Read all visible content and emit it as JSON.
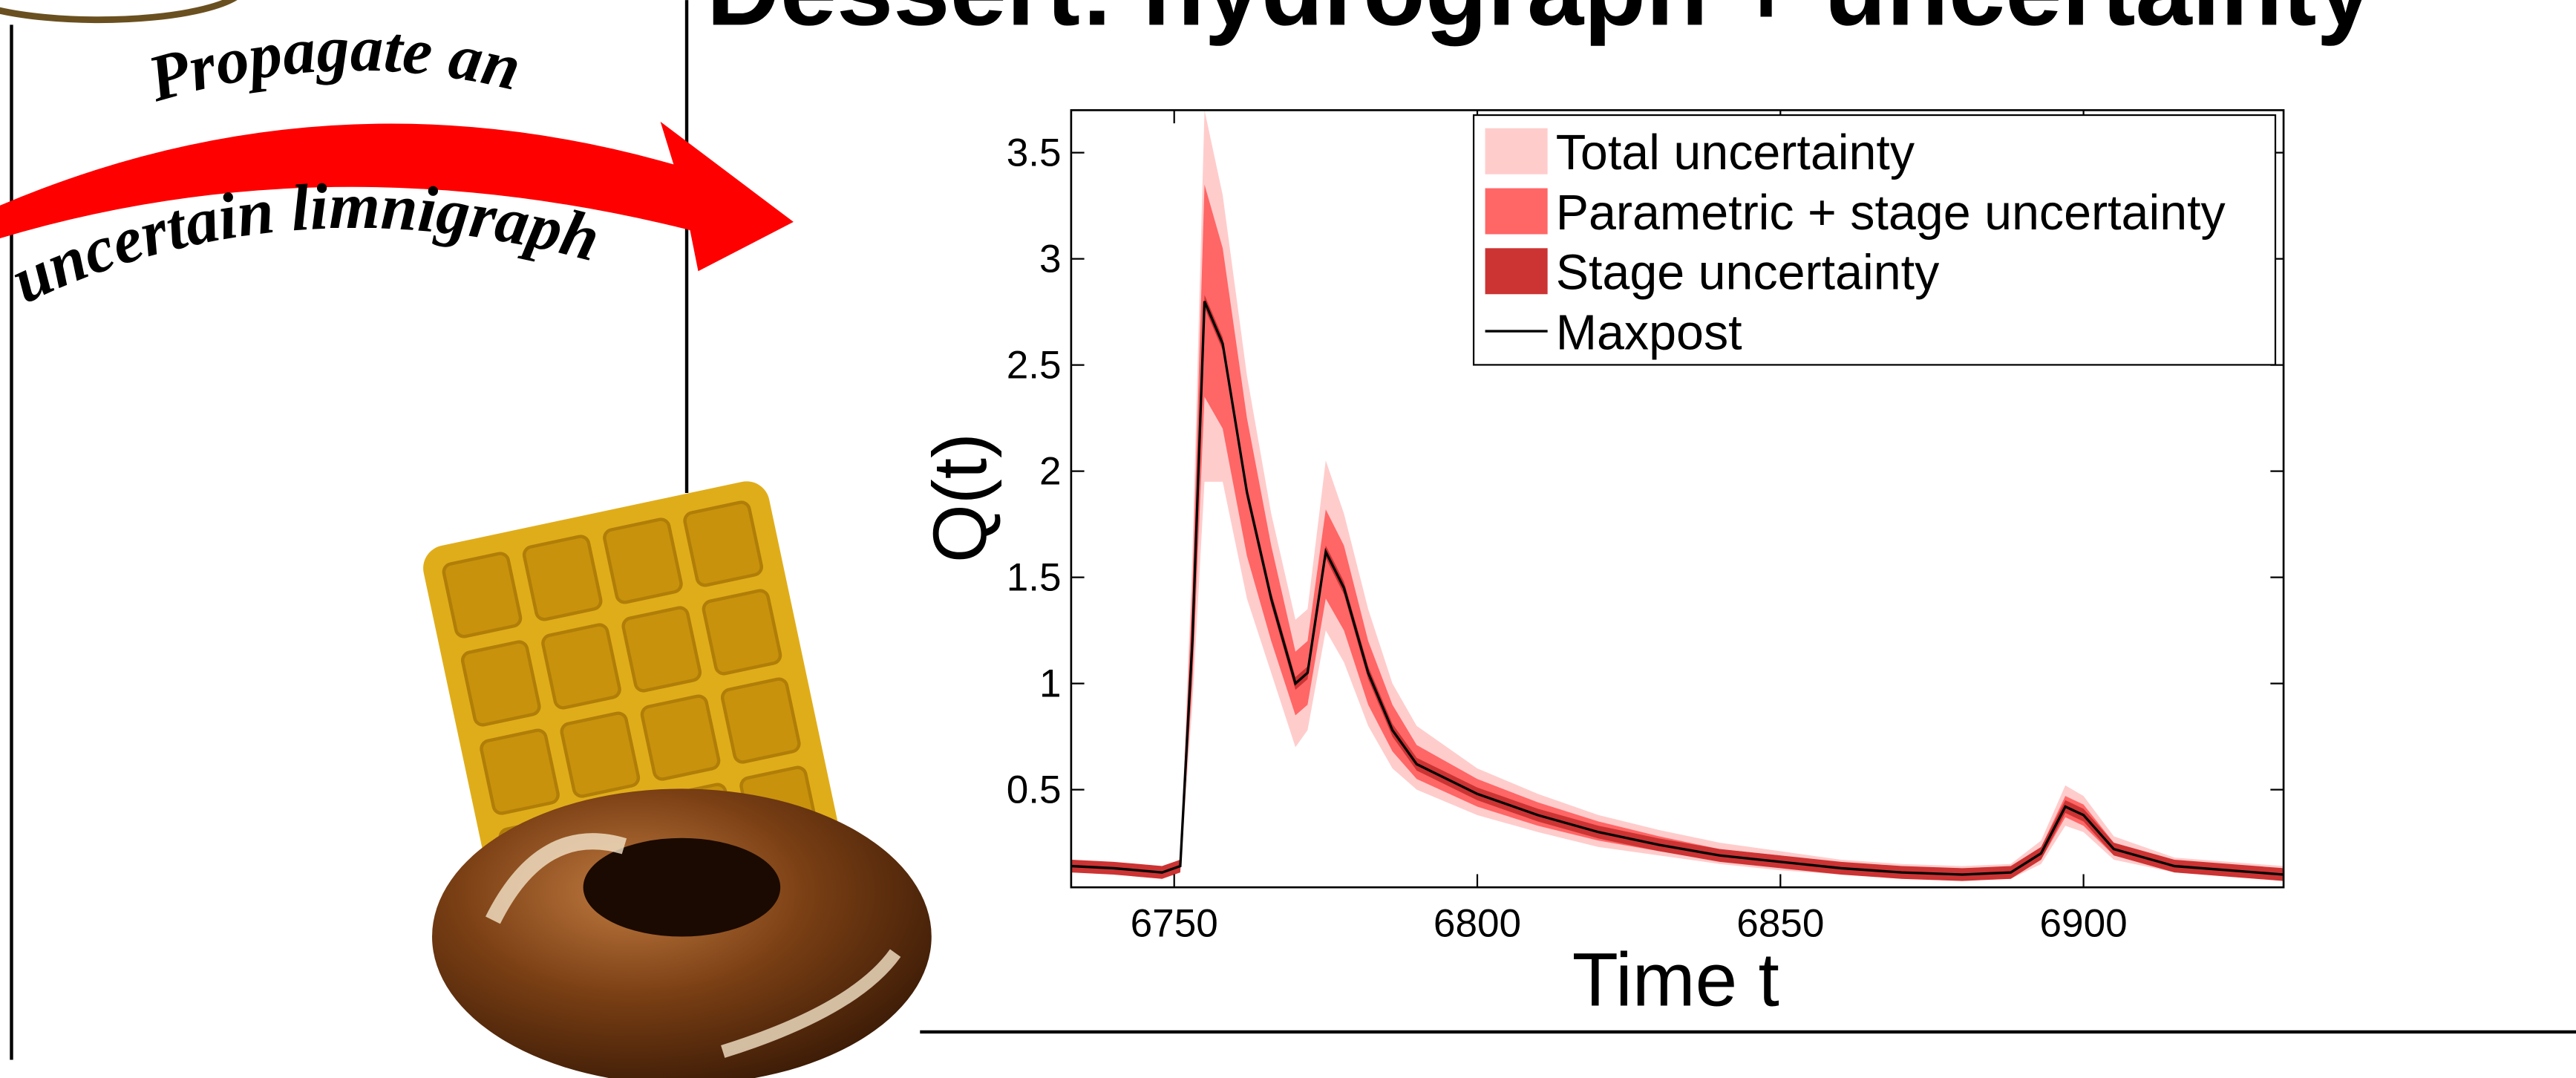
{
  "title": "Dessert: hydrograph + uncertainty",
  "arrow_text": [
    "Propagate an",
    "uncertain limnigraph"
  ],
  "chart_data": {
    "type": "band-line",
    "xlabel": "Time t",
    "ylabel": "Q(t)",
    "xlim": [
      6733,
      6933
    ],
    "ylim": [
      0.04,
      3.7
    ],
    "xticks": [
      6750,
      6800,
      6850,
      6900
    ],
    "yticks": [
      0.5,
      1,
      1.5,
      2,
      2.5,
      3,
      3.5
    ],
    "legend": "upper right",
    "x": [
      6733,
      6740,
      6748,
      6751,
      6753,
      6755,
      6758,
      6762,
      6766,
      6770,
      6772,
      6775,
      6778,
      6782,
      6786,
      6790,
      6800,
      6810,
      6820,
      6830,
      6840,
      6850,
      6860,
      6870,
      6880,
      6888,
      6893,
      6897,
      6900,
      6905,
      6915,
      6933
    ],
    "series": [
      {
        "name": "Total uncertainty",
        "color": "#ffcccc",
        "lower": [
          0.11,
          0.1,
          0.08,
          0.11,
          0.9,
          1.95,
          1.95,
          1.4,
          1.05,
          0.7,
          0.78,
          1.25,
          1.1,
          0.8,
          0.6,
          0.5,
          0.38,
          0.3,
          0.23,
          0.19,
          0.15,
          0.12,
          0.1,
          0.08,
          0.07,
          0.08,
          0.15,
          0.33,
          0.3,
          0.17,
          0.11,
          0.07
        ],
        "upper": [
          0.17,
          0.16,
          0.14,
          0.17,
          1.6,
          3.7,
          3.3,
          2.45,
          1.8,
          1.3,
          1.35,
          2.05,
          1.8,
          1.35,
          1.0,
          0.8,
          0.6,
          0.48,
          0.38,
          0.31,
          0.25,
          0.21,
          0.17,
          0.15,
          0.14,
          0.15,
          0.26,
          0.52,
          0.47,
          0.28,
          0.18,
          0.14
        ]
      },
      {
        "name": "Parametric + stage uncertainty",
        "color": "#ff6666",
        "lower": [
          0.12,
          0.11,
          0.09,
          0.12,
          1.0,
          2.35,
          2.2,
          1.6,
          1.2,
          0.85,
          0.9,
          1.4,
          1.25,
          0.9,
          0.68,
          0.55,
          0.42,
          0.33,
          0.26,
          0.21,
          0.17,
          0.14,
          0.11,
          0.09,
          0.08,
          0.09,
          0.17,
          0.37,
          0.33,
          0.19,
          0.12,
          0.08
        ],
        "upper": [
          0.16,
          0.15,
          0.13,
          0.16,
          1.45,
          3.35,
          3.05,
          2.25,
          1.65,
          1.15,
          1.2,
          1.82,
          1.65,
          1.2,
          0.9,
          0.71,
          0.55,
          0.44,
          0.35,
          0.28,
          0.22,
          0.19,
          0.15,
          0.13,
          0.12,
          0.13,
          0.23,
          0.47,
          0.43,
          0.25,
          0.16,
          0.12
        ]
      },
      {
        "name": "Stage uncertainty",
        "color": "#cc3333",
        "lower": [
          0.11,
          0.1,
          0.08,
          0.11,
          1.17,
          2.77,
          2.57,
          1.87,
          1.37,
          0.97,
          1.02,
          1.59,
          1.42,
          1.02,
          0.75,
          0.59,
          0.45,
          0.35,
          0.27,
          0.21,
          0.16,
          0.13,
          0.1,
          0.08,
          0.07,
          0.08,
          0.17,
          0.39,
          0.35,
          0.19,
          0.11,
          0.07
        ],
        "upper": [
          0.17,
          0.16,
          0.14,
          0.17,
          1.23,
          2.83,
          2.63,
          1.93,
          1.43,
          1.03,
          1.08,
          1.65,
          1.48,
          1.08,
          0.81,
          0.65,
          0.51,
          0.41,
          0.33,
          0.27,
          0.22,
          0.19,
          0.16,
          0.14,
          0.13,
          0.14,
          0.23,
          0.45,
          0.41,
          0.25,
          0.17,
          0.13
        ]
      },
      {
        "name": "Maxpost",
        "color": "#000000",
        "values": [
          0.14,
          0.13,
          0.11,
          0.14,
          1.2,
          2.8,
          2.6,
          1.9,
          1.4,
          1.0,
          1.05,
          1.62,
          1.45,
          1.05,
          0.78,
          0.62,
          0.48,
          0.38,
          0.3,
          0.24,
          0.19,
          0.16,
          0.13,
          0.11,
          0.1,
          0.11,
          0.2,
          0.42,
          0.38,
          0.22,
          0.14,
          0.1
        ]
      }
    ]
  }
}
